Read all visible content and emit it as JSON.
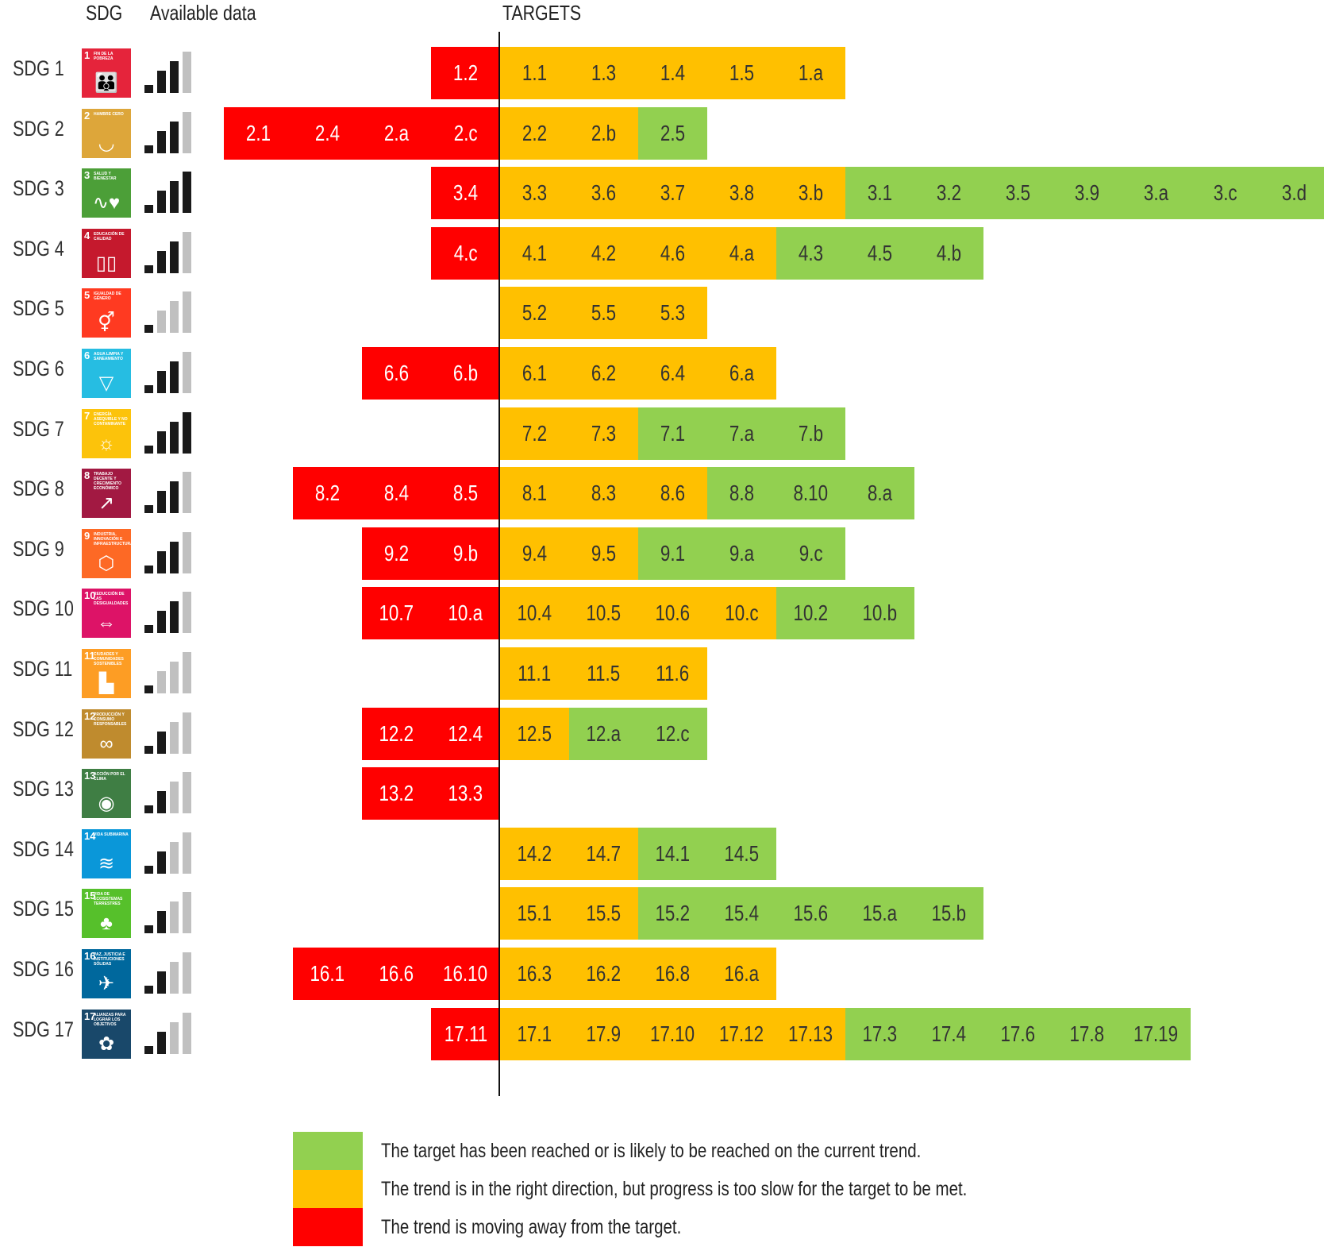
{
  "headers": {
    "sdg": "SDG",
    "available": "Available data",
    "targets": "TARGETS"
  },
  "colors": {
    "red": "#FF0000",
    "orange": "#FFC000",
    "green": "#92D050",
    "bar_dark": "#1a1a1a",
    "bar_light": "#c0c0c0"
  },
  "legend": [
    {
      "status": "green",
      "text": "The target has been reached or is likely to be reached on the current trend."
    },
    {
      "status": "orange",
      "text": "The trend is in the right direction, but progress is too slow for the target to be met."
    },
    {
      "status": "red",
      "text": "The trend is moving away from the target."
    }
  ],
  "chart_data": {
    "type": "table",
    "rows": [
      {
        "sdg": "SDG 1",
        "icon_number": "1",
        "icon_text": "FIN DE LA POBREZA",
        "icon_color": "#E5243B",
        "icon_name": "people-icon",
        "available_level": 3,
        "red": [
          "1.2"
        ],
        "orange": [
          "1.1",
          "1.3",
          "1.4",
          "1.5",
          "1.a"
        ],
        "green": []
      },
      {
        "sdg": "SDG 2",
        "icon_number": "2",
        "icon_text": "HAMBRE CERO",
        "icon_color": "#DDA63A",
        "icon_name": "bowl-icon",
        "available_level": 3,
        "red": [
          "2.1",
          "2.4",
          "2.a",
          "2.c"
        ],
        "orange": [
          "2.2",
          "2.b"
        ],
        "green": [
          "2.5"
        ]
      },
      {
        "sdg": "SDG 3",
        "icon_number": "3",
        "icon_text": "SALUD Y BIENESTAR",
        "icon_color": "#4C9F38",
        "icon_name": "heartbeat-icon",
        "available_level": 4,
        "red": [
          "3.4"
        ],
        "orange": [
          "3.3",
          "3.6",
          "3.7",
          "3.8",
          "3.b"
        ],
        "green": [
          "3.1",
          "3.2",
          "3.5",
          "3.9",
          "3.a",
          "3.c",
          "3.d"
        ]
      },
      {
        "sdg": "SDG 4",
        "icon_number": "4",
        "icon_text": "EDUCACIÓN DE CALIDAD",
        "icon_color": "#C5192D",
        "icon_name": "book-icon",
        "available_level": 3,
        "red": [
          "4.c"
        ],
        "orange": [
          "4.1",
          "4.2",
          "4.6",
          "4.a"
        ],
        "green": [
          "4.3",
          "4.5",
          "4.b"
        ]
      },
      {
        "sdg": "SDG 5",
        "icon_number": "5",
        "icon_text": "IGUALDAD DE GÉNERO",
        "icon_color": "#FF3A21",
        "icon_name": "gender-icon",
        "available_level": 1,
        "red": [],
        "orange": [
          "5.2",
          "5.5",
          "5.3"
        ],
        "green": []
      },
      {
        "sdg": "SDG 6",
        "icon_number": "6",
        "icon_text": "AGUA LIMPIA Y SANEAMIENTO",
        "icon_color": "#26BDE2",
        "icon_name": "water-icon",
        "available_level": 3,
        "red": [
          "6.6",
          "6.b"
        ],
        "orange": [
          "6.1",
          "6.2",
          "6.4",
          "6.a"
        ],
        "green": []
      },
      {
        "sdg": "SDG 7",
        "icon_number": "7",
        "icon_text": "ENERGÍA ASEQUIBLE Y NO CONTAMINANTE",
        "icon_color": "#FCC30B",
        "icon_name": "sun-icon",
        "available_level": 4,
        "red": [],
        "orange": [
          "7.2",
          "7.3"
        ],
        "green": [
          "7.1",
          "7.a",
          "7.b"
        ]
      },
      {
        "sdg": "SDG 8",
        "icon_number": "8",
        "icon_text": "TRABAJO DECENTE Y CRECIMIENTO ECONÓMICO",
        "icon_color": "#A21942",
        "icon_name": "growth-icon",
        "available_level": 3,
        "red": [
          "8.2",
          "8.4",
          "8.5"
        ],
        "orange": [
          "8.1",
          "8.3",
          "8.6"
        ],
        "green": [
          "8.8",
          "8.10",
          "8.a"
        ]
      },
      {
        "sdg": "SDG 9",
        "icon_number": "9",
        "icon_text": "INDUSTRIA, INNOVACIÓN E INFRAESTRUCTURA",
        "icon_color": "#FD6925",
        "icon_name": "cubes-icon",
        "available_level": 3,
        "red": [
          "9.2",
          "9.b"
        ],
        "orange": [
          "9.4",
          "9.5"
        ],
        "green": [
          "9.1",
          "9.a",
          "9.c"
        ]
      },
      {
        "sdg": "SDG 10",
        "icon_number": "10",
        "icon_text": "REDUCCIÓN DE LAS DESIGUALDADES",
        "icon_color": "#DD1367",
        "icon_name": "equality-icon",
        "available_level": 3,
        "red": [
          "10.7",
          "10.a"
        ],
        "orange": [
          "10.4",
          "10.5",
          "10.6",
          "10.c"
        ],
        "green": [
          "10.2",
          "10.b"
        ]
      },
      {
        "sdg": "SDG 11",
        "icon_number": "11",
        "icon_text": "CIUDADES Y COMUNIDADES SOSTENIBLES",
        "icon_color": "#FD9D24",
        "icon_name": "city-icon",
        "available_level": 1,
        "red": [],
        "orange": [
          "11.1",
          "11.5",
          "11.6"
        ],
        "green": []
      },
      {
        "sdg": "SDG 12",
        "icon_number": "12",
        "icon_text": "PRODUCCIÓN Y CONSUMO RESPONSABLES",
        "icon_color": "#BF8B2E",
        "icon_name": "infinity-icon",
        "available_level": 2,
        "red": [
          "12.2",
          "12.4"
        ],
        "orange": [
          "12.5"
        ],
        "green": [
          "12.a",
          "12.c"
        ]
      },
      {
        "sdg": "SDG 13",
        "icon_number": "13",
        "icon_text": "ACCIÓN POR EL CLIMA",
        "icon_color": "#3F7E44",
        "icon_name": "eye-globe-icon",
        "available_level": 2,
        "red": [
          "13.2",
          "13.3"
        ],
        "orange": [],
        "green": []
      },
      {
        "sdg": "SDG 14",
        "icon_number": "14",
        "icon_text": "VIDA SUBMARINA",
        "icon_color": "#0A97D9",
        "icon_name": "fish-icon",
        "available_level": 2,
        "red": [],
        "orange": [
          "14.2",
          "14.7"
        ],
        "green": [
          "14.1",
          "14.5"
        ]
      },
      {
        "sdg": "SDG 15",
        "icon_number": "15",
        "icon_text": "VIDA DE ECOSISTEMAS TERRESTRES",
        "icon_color": "#56C02B",
        "icon_name": "tree-icon",
        "available_level": 2,
        "red": [],
        "orange": [
          "15.1",
          "15.5"
        ],
        "green": [
          "15.2",
          "15.4",
          "15.6",
          "15.a",
          "15.b"
        ]
      },
      {
        "sdg": "SDG 16",
        "icon_number": "16",
        "icon_text": "PAZ, JUSTICIA E INSTITUCIONES SÓLIDAS",
        "icon_color": "#00689D",
        "icon_name": "dove-icon",
        "available_level": 2,
        "red": [
          "16.1",
          "16.6",
          "16.10"
        ],
        "orange": [
          "16.3",
          "16.2",
          "16.8",
          "16.a"
        ],
        "green": []
      },
      {
        "sdg": "SDG 17",
        "icon_number": "17",
        "icon_text": "ALIANZAS PARA LOGRAR LOS OBJETIVOS",
        "icon_color": "#19486A",
        "icon_name": "flower-icon",
        "available_level": 2,
        "red": [
          "17.11"
        ],
        "orange": [
          "17.1",
          "17.9",
          "17.10",
          "17.12",
          "17.13"
        ],
        "green": [
          "17.3",
          "17.4",
          "17.6",
          "17.8",
          "17.19"
        ]
      }
    ]
  }
}
